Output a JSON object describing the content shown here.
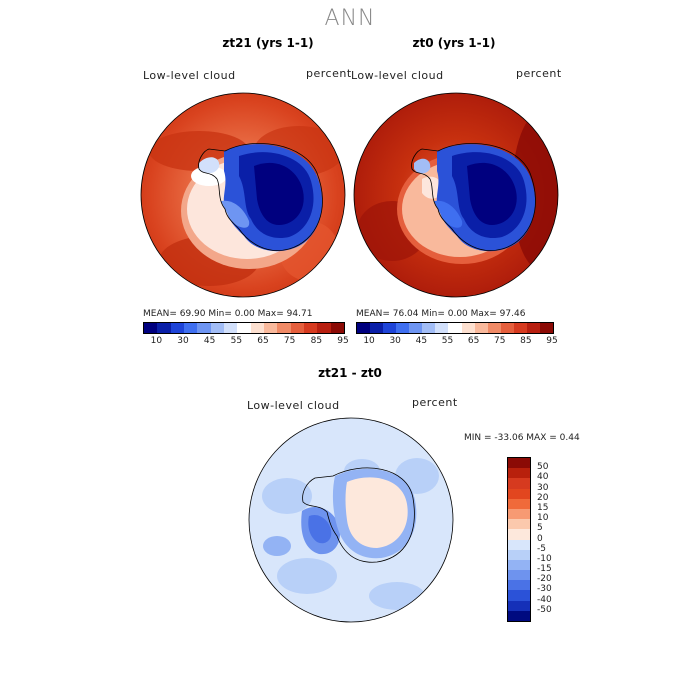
{
  "main_title": "ANN",
  "panels": [
    {
      "title": "zt21 (yrs 1-1)",
      "variable": "Low-level cloud",
      "units": "percent",
      "stats": "MEAN=  69.90  Min=    0.00  Max=  94.71"
    },
    {
      "title": "zt0 (yrs 1-1)",
      "variable": "Low-level cloud",
      "units": "percent",
      "stats": "MEAN=  76.04  Min=    0.00  Max=  97.46"
    }
  ],
  "diff_panel": {
    "title": "zt21 - zt0",
    "variable": "Low-level cloud",
    "units": "percent",
    "stats": "MIN = -33.06 MAX =    0.44"
  },
  "abs_colorbar": {
    "colors": [
      "#00007f",
      "#0a1fa8",
      "#1e44d8",
      "#3f6ff0",
      "#6e95f2",
      "#a2bdf6",
      "#d2e0fb",
      "#ffffff",
      "#fde0d0",
      "#f9b99c",
      "#f08a66",
      "#e55f3d",
      "#d63a1f",
      "#b81f10",
      "#8b0a05"
    ],
    "tick_labels": [
      "10",
      "30",
      "45",
      "55",
      "65",
      "75",
      "85",
      "95"
    ]
  },
  "diff_colorbar": {
    "colors": [
      "#8b0a05",
      "#b8200c",
      "#d63a1f",
      "#e2461f",
      "#f06a3a",
      "#f79a73",
      "#fbc9ad",
      "#fde8dc",
      "#d8e6fb",
      "#b8d0f8",
      "#93b3f4",
      "#6e93ee",
      "#4a72e6",
      "#2b52d8",
      "#1530b8",
      "#000a80"
    ],
    "tick_labels": [
      "50",
      "40",
      "30",
      "20",
      "15",
      "10",
      "5",
      "0",
      "-5",
      "-10",
      "-15",
      "-20",
      "-30",
      "-40",
      "-50"
    ]
  }
}
